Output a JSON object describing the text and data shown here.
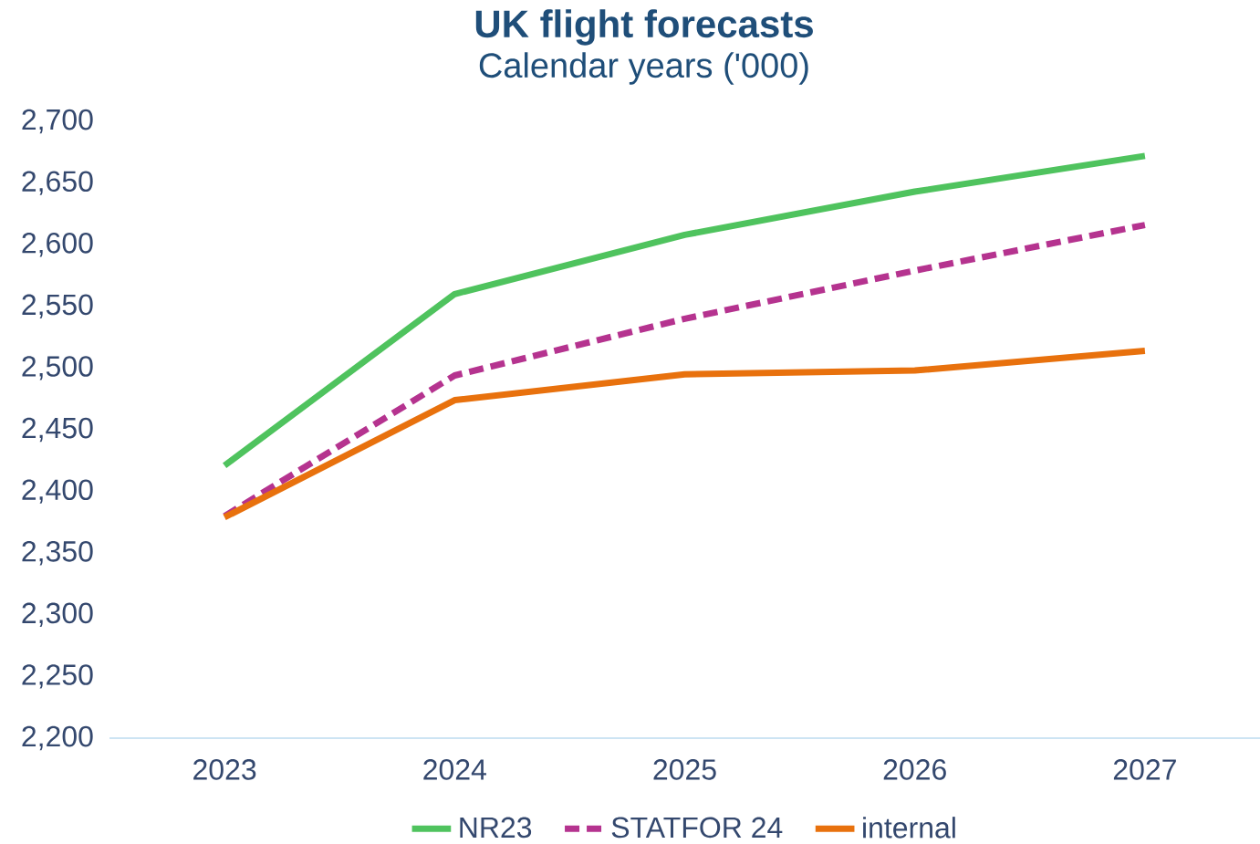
{
  "chart_data": {
    "type": "line",
    "title": "UK flight forecasts",
    "subtitle": "Calendar years ('000)",
    "categories": [
      "2023",
      "2024",
      "2025",
      "2026",
      "2027"
    ],
    "series": [
      {
        "name": "NR23",
        "color": "#4fc35e",
        "values": [
          2421,
          2560,
          2608,
          2643,
          2672
        ],
        "line_style": "solid"
      },
      {
        "name": "STATFOR 24",
        "color": "#b5338f",
        "values": [
          2380,
          2494,
          2540,
          2579,
          2616
        ],
        "line_style": "dashed"
      },
      {
        "name": "internal",
        "color": "#e8710d",
        "values": [
          2379,
          2474,
          2495,
          2498,
          2514
        ],
        "line_style": "solid"
      }
    ],
    "ylim": [
      2200,
      2700
    ],
    "yticks": [
      {
        "value": 2200,
        "label": "2,200"
      },
      {
        "value": 2250,
        "label": "2,250"
      },
      {
        "value": 2300,
        "label": "2,300"
      },
      {
        "value": 2350,
        "label": "2,350"
      },
      {
        "value": 2400,
        "label": "2,400"
      },
      {
        "value": 2450,
        "label": "2,450"
      },
      {
        "value": 2500,
        "label": "2,500"
      },
      {
        "value": 2550,
        "label": "2,550"
      },
      {
        "value": 2600,
        "label": "2,600"
      },
      {
        "value": 2650,
        "label": "2,650"
      },
      {
        "value": 2700,
        "label": "2,700"
      }
    ],
    "grid": false,
    "legend": "bottom",
    "marker": "none"
  }
}
